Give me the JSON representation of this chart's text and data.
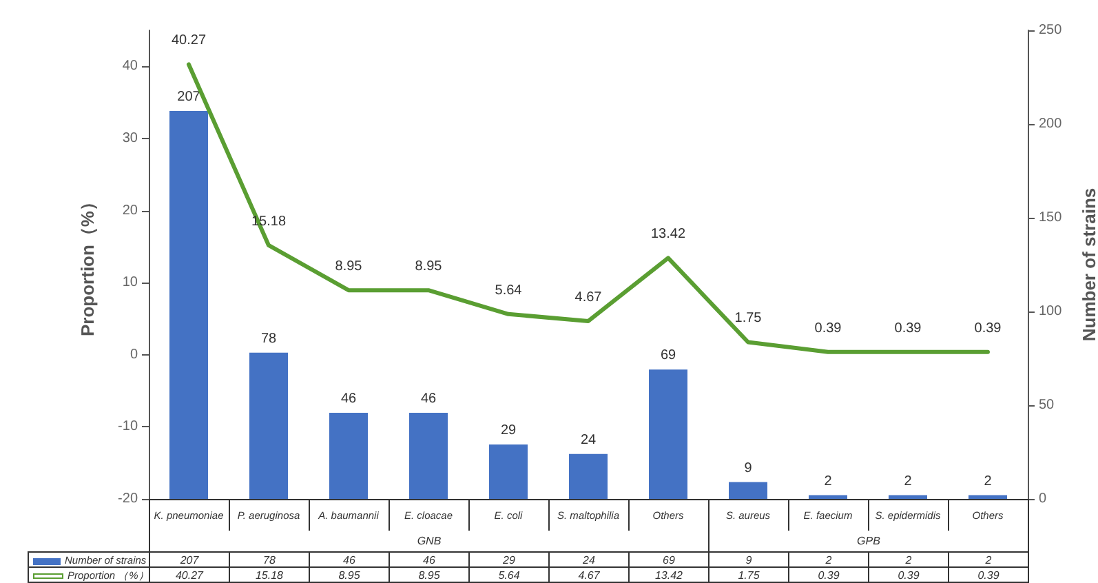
{
  "chart_data": {
    "type": "bar",
    "categories": [
      "K. pneumoniae",
      "P. aeruginosa",
      "A. baumannii",
      "E. cloacae",
      "E. coli",
      "S. maltophilia",
      "Others",
      "S. aureus",
      "E. faecium",
      "S. epidermidis",
      "Others"
    ],
    "series": [
      {
        "name": "Number of strains",
        "type": "bar",
        "axis": "y2",
        "color": "#4472c4",
        "values": [
          207,
          78,
          46,
          46,
          29,
          24,
          69,
          9,
          2,
          2,
          2
        ],
        "value_labels": [
          "207",
          "78",
          "46",
          "46",
          "29",
          "24",
          "69",
          "9",
          "2",
          "2",
          "2"
        ]
      },
      {
        "name": "Proportion （%）",
        "type": "line",
        "axis": "y",
        "color": "#5a9e32",
        "values": [
          40.27,
          15.18,
          8.95,
          8.95,
          5.64,
          4.67,
          13.42,
          1.75,
          0.39,
          0.39,
          0.39
        ],
        "value_labels": [
          "40.27",
          "15.18",
          "8.95",
          "8.95",
          "5.64",
          "4.67",
          "13.42",
          "1.75",
          "0.39",
          "0.39",
          "0.39"
        ]
      }
    ],
    "ylabel": "Proportion（%）",
    "y2label": "Number of strains",
    "ylim": [
      -20,
      45
    ],
    "yticks": [
      -20,
      -10,
      0,
      10,
      20,
      30,
      40
    ],
    "y2lim": [
      0,
      250
    ],
    "y2ticks": [
      0,
      50,
      100,
      150,
      200,
      250
    ],
    "annotations": [
      "GNB",
      "GPB"
    ],
    "data_labels": true,
    "legend": "bottom",
    "grid": false
  }
}
